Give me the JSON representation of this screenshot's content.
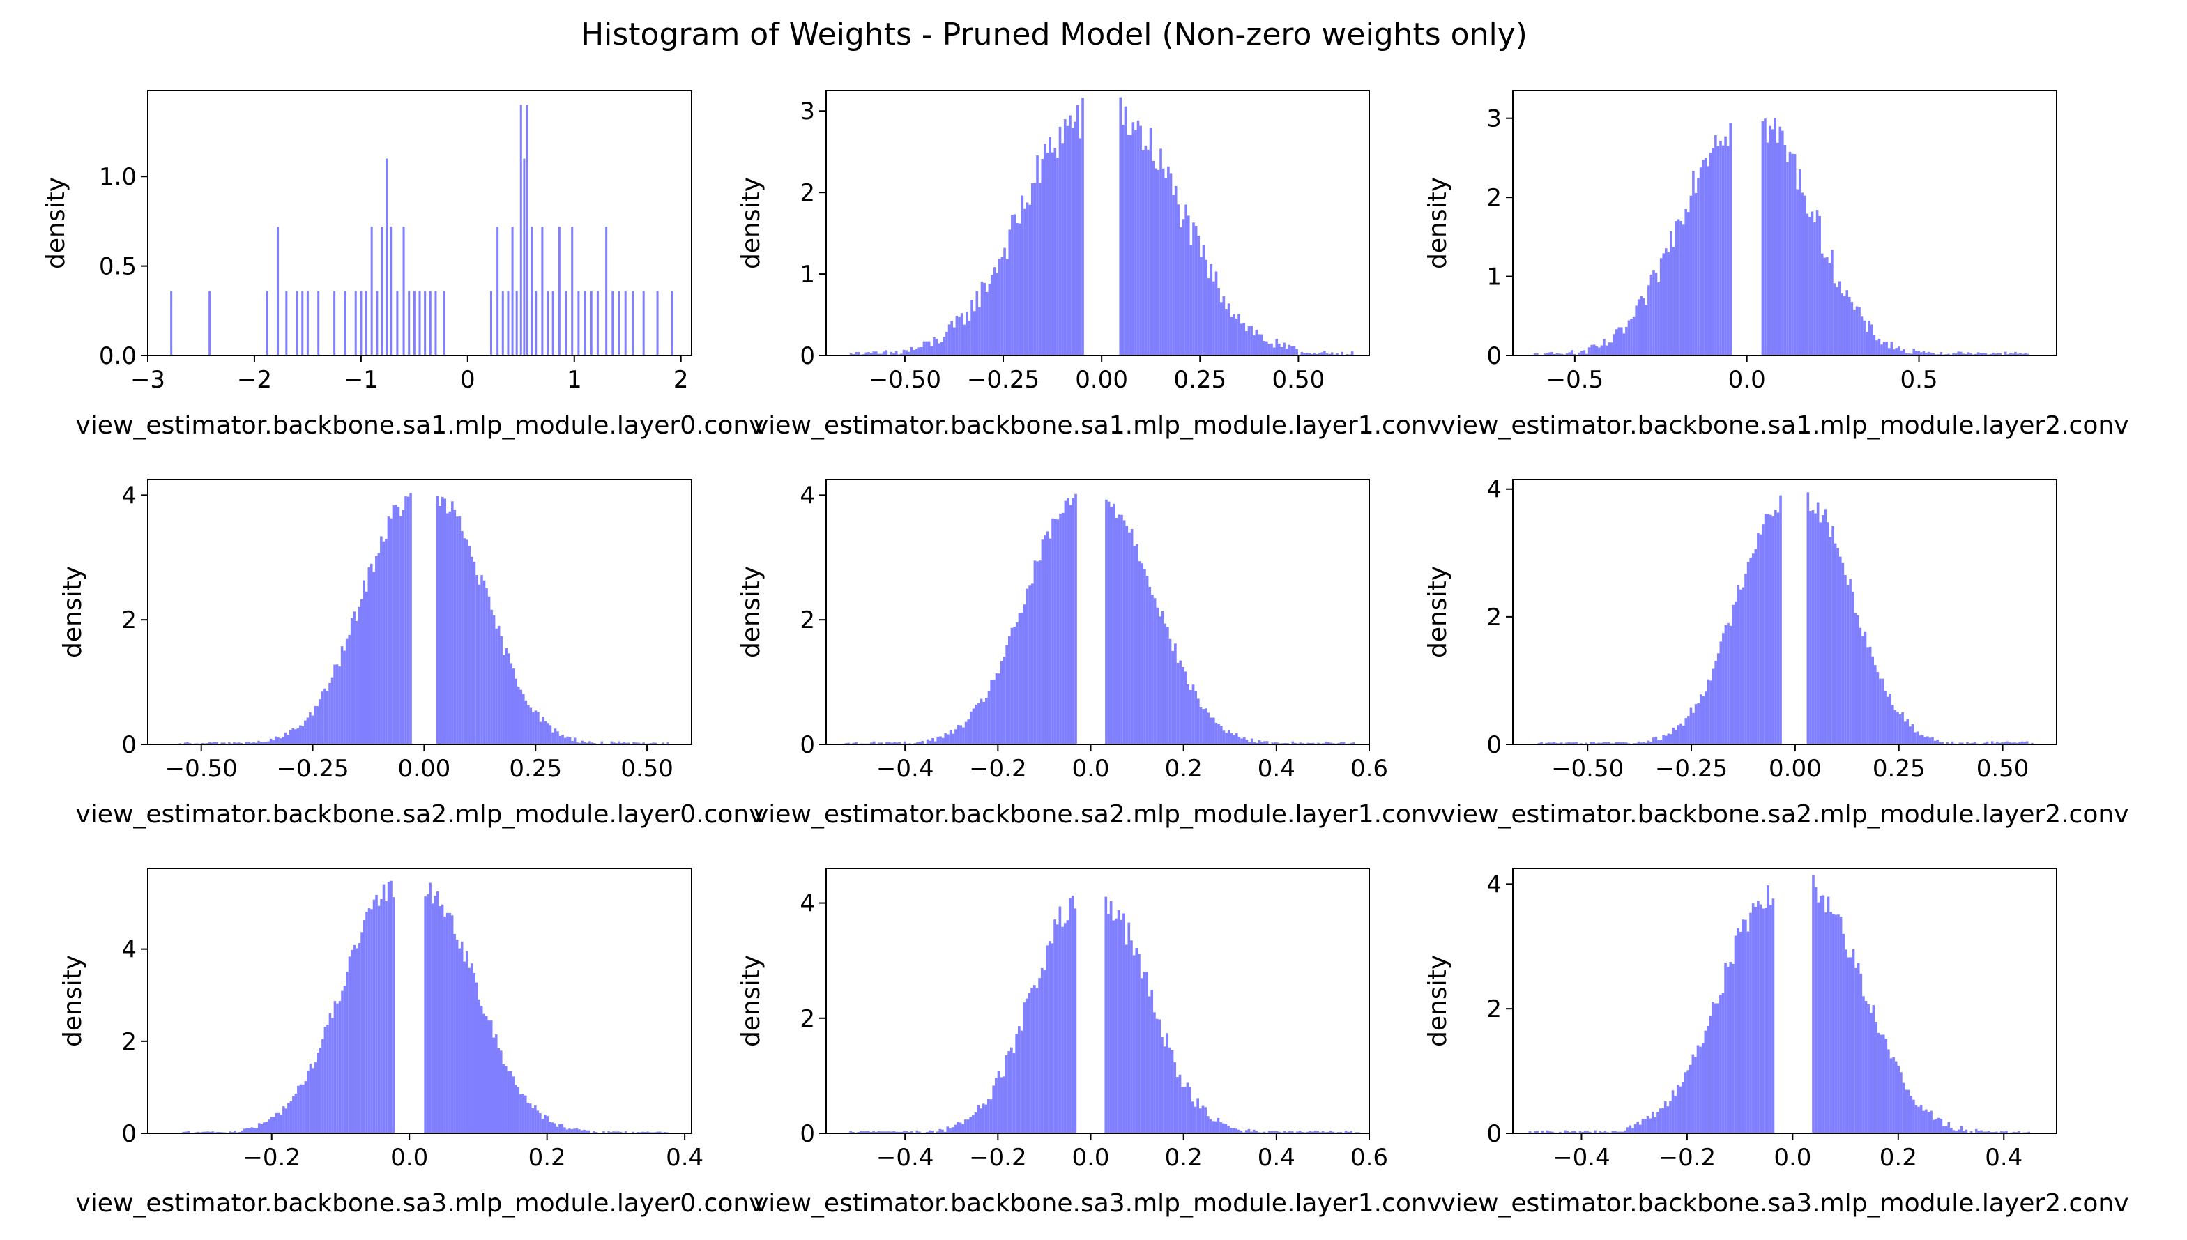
{
  "figure": {
    "title": "Histogram of Weights - Pruned Model (Non-zero weights only)",
    "bar_color": "#7f7fff",
    "frame_color": "#000000"
  },
  "chart_data": [
    {
      "type": "bar",
      "kind": "histogram",
      "xlabel": "view_estimator.backbone.sa1.mlp_module.layer0.conv",
      "ylabel": "density",
      "xlim": [
        -3.0,
        2.1
      ],
      "ylim": [
        0,
        1.48
      ],
      "xticks": [
        -3,
        -2,
        -1,
        0,
        1,
        2
      ],
      "xtick_labels": [
        "−3",
        "−2",
        "−1",
        "0",
        "1",
        "2"
      ],
      "yticks": [
        0,
        0.5,
        1.0
      ],
      "ytick_labels": [
        "0.0",
        "0.5",
        "1.0"
      ],
      "sparse": true,
      "bins": [
        {
          "x": -2.78,
          "y": 0.36
        },
        {
          "x": -2.42,
          "y": 0.36
        },
        {
          "x": -1.88,
          "y": 0.36
        },
        {
          "x": -1.78,
          "y": 0.72
        },
        {
          "x": -1.7,
          "y": 0.36
        },
        {
          "x": -1.6,
          "y": 0.36
        },
        {
          "x": -1.55,
          "y": 0.36
        },
        {
          "x": -1.5,
          "y": 0.36
        },
        {
          "x": -1.4,
          "y": 0.36
        },
        {
          "x": -1.25,
          "y": 0.36
        },
        {
          "x": -1.15,
          "y": 0.36
        },
        {
          "x": -1.05,
          "y": 0.36
        },
        {
          "x": -1.0,
          "y": 0.36
        },
        {
          "x": -0.95,
          "y": 0.36
        },
        {
          "x": -0.9,
          "y": 0.72
        },
        {
          "x": -0.85,
          "y": 0.36
        },
        {
          "x": -0.8,
          "y": 0.72
        },
        {
          "x": -0.76,
          "y": 1.1
        },
        {
          "x": -0.72,
          "y": 0.72
        },
        {
          "x": -0.66,
          "y": 0.36
        },
        {
          "x": -0.6,
          "y": 0.72
        },
        {
          "x": -0.55,
          "y": 0.36
        },
        {
          "x": -0.5,
          "y": 0.36
        },
        {
          "x": -0.45,
          "y": 0.36
        },
        {
          "x": -0.4,
          "y": 0.36
        },
        {
          "x": -0.35,
          "y": 0.36
        },
        {
          "x": -0.3,
          "y": 0.36
        },
        {
          "x": -0.22,
          "y": 0.36
        },
        {
          "x": 0.22,
          "y": 0.36
        },
        {
          "x": 0.28,
          "y": 0.72
        },
        {
          "x": 0.33,
          "y": 0.36
        },
        {
          "x": 0.38,
          "y": 0.36
        },
        {
          "x": 0.42,
          "y": 0.72
        },
        {
          "x": 0.46,
          "y": 0.36
        },
        {
          "x": 0.5,
          "y": 1.4
        },
        {
          "x": 0.53,
          "y": 1.1
        },
        {
          "x": 0.56,
          "y": 1.4
        },
        {
          "x": 0.6,
          "y": 0.72
        },
        {
          "x": 0.64,
          "y": 0.36
        },
        {
          "x": 0.7,
          "y": 0.72
        },
        {
          "x": 0.75,
          "y": 0.36
        },
        {
          "x": 0.8,
          "y": 0.36
        },
        {
          "x": 0.86,
          "y": 0.72
        },
        {
          "x": 0.92,
          "y": 0.36
        },
        {
          "x": 0.98,
          "y": 0.72
        },
        {
          "x": 1.04,
          "y": 0.36
        },
        {
          "x": 1.1,
          "y": 0.36
        },
        {
          "x": 1.16,
          "y": 0.36
        },
        {
          "x": 1.22,
          "y": 0.36
        },
        {
          "x": 1.3,
          "y": 0.72
        },
        {
          "x": 1.36,
          "y": 0.36
        },
        {
          "x": 1.42,
          "y": 0.36
        },
        {
          "x": 1.48,
          "y": 0.36
        },
        {
          "x": 1.55,
          "y": 0.36
        },
        {
          "x": 1.65,
          "y": 0.36
        },
        {
          "x": 1.78,
          "y": 0.36
        },
        {
          "x": 1.92,
          "y": 0.36
        }
      ]
    },
    {
      "type": "bar",
      "kind": "histogram",
      "xlabel": "view_estimator.backbone.sa1.mlp_module.layer1.conv",
      "ylabel": "density",
      "xlim": [
        -0.7,
        0.68
      ],
      "ylim": [
        0,
        3.25
      ],
      "xticks": [
        -0.5,
        -0.25,
        0,
        0.25,
        0.5
      ],
      "xtick_labels": [
        "−0.50",
        "−0.25",
        "0.00",
        "0.25",
        "0.50"
      ],
      "yticks": [
        0,
        1,
        2,
        3
      ],
      "ytick_labels": [
        "0",
        "1",
        "2",
        "3"
      ],
      "gap": [
        -0.045,
        0.045
      ],
      "sigma": 0.16,
      "peak": 2.9,
      "noise": 0.3,
      "data_range": [
        -0.64,
        0.64
      ],
      "nbins": 200
    },
    {
      "type": "bar",
      "kind": "histogram",
      "xlabel": "view_estimator.backbone.sa1.mlp_module.layer2.conv",
      "ylabel": "density",
      "xlim": [
        -0.68,
        0.9
      ],
      "ylim": [
        0,
        3.35
      ],
      "xticks": [
        -0.5,
        0,
        0.5
      ],
      "xtick_labels": [
        "−0.5",
        "0.0",
        "0.5"
      ],
      "yticks": [
        0,
        1,
        2,
        3
      ],
      "ytick_labels": [
        "0",
        "1",
        "2",
        "3"
      ],
      "gap": [
        -0.045,
        0.045
      ],
      "sigma": 0.15,
      "peak": 2.9,
      "noise": 0.28,
      "data_range": [
        -0.62,
        0.82
      ],
      "nbins": 200
    },
    {
      "type": "bar",
      "kind": "histogram",
      "xlabel": "view_estimator.backbone.sa2.mlp_module.layer0.conv",
      "ylabel": "density",
      "xlim": [
        -0.62,
        0.6
      ],
      "ylim": [
        0,
        4.25
      ],
      "xticks": [
        -0.5,
        -0.25,
        0,
        0.25,
        0.5
      ],
      "xtick_labels": [
        "−0.50",
        "−0.25",
        "0.00",
        "0.25",
        "0.50"
      ],
      "yticks": [
        0,
        2,
        4
      ],
      "ytick_labels": [
        "0",
        "2",
        "4"
      ],
      "gap": [
        -0.03,
        0.03
      ],
      "sigma": 0.11,
      "peak": 3.9,
      "noise": 0.2,
      "data_range": [
        -0.55,
        0.55
      ],
      "nbins": 200
    },
    {
      "type": "bar",
      "kind": "histogram",
      "xlabel": "view_estimator.backbone.sa2.mlp_module.layer1.conv",
      "ylabel": "density",
      "xlim": [
        -0.57,
        0.6
      ],
      "ylim": [
        0,
        4.25
      ],
      "xticks": [
        -0.4,
        -0.2,
        0,
        0.2,
        0.4,
        0.6
      ],
      "xtick_labels": [
        "−0.4",
        "−0.2",
        "0.0",
        "0.2",
        "0.4",
        "0.6"
      ],
      "yticks": [
        0,
        2,
        4
      ],
      "ytick_labels": [
        "0",
        "2",
        "4"
      ],
      "gap": [
        -0.03,
        0.03
      ],
      "sigma": 0.11,
      "peak": 3.9,
      "noise": 0.2,
      "data_range": [
        -0.53,
        0.57
      ],
      "nbins": 200
    },
    {
      "type": "bar",
      "kind": "histogram",
      "xlabel": "view_estimator.backbone.sa2.mlp_module.layer2.conv",
      "ylabel": "density",
      "xlim": [
        -0.68,
        0.63
      ],
      "ylim": [
        0,
        4.15
      ],
      "xticks": [
        -0.5,
        -0.25,
        0,
        0.25,
        0.5
      ],
      "xtick_labels": [
        "−0.50",
        "−0.25",
        "0.00",
        "0.25",
        "0.50"
      ],
      "yticks": [
        0,
        2,
        4
      ],
      "ytick_labels": [
        "0",
        "2",
        "4"
      ],
      "gap": [
        -0.03,
        0.03
      ],
      "sigma": 0.11,
      "peak": 3.8,
      "noise": 0.2,
      "data_range": [
        -0.62,
        0.58
      ],
      "nbins": 200
    },
    {
      "type": "bar",
      "kind": "histogram",
      "xlabel": "view_estimator.backbone.sa3.mlp_module.layer0.conv",
      "ylabel": "density",
      "xlim": [
        -0.38,
        0.41
      ],
      "ylim": [
        0,
        5.75
      ],
      "xticks": [
        -0.2,
        0,
        0.2,
        0.4
      ],
      "xtick_labels": [
        "−0.2",
        "0.0",
        "0.2",
        "0.4"
      ],
      "yticks": [
        0,
        2,
        4
      ],
      "ytick_labels": [
        "0",
        "2",
        "4"
      ],
      "gap": [
        -0.022,
        0.022
      ],
      "sigma": 0.075,
      "peak": 5.3,
      "noise": 0.25,
      "data_range": [
        -0.33,
        0.38
      ],
      "nbins": 200
    },
    {
      "type": "bar",
      "kind": "histogram",
      "xlabel": "view_estimator.backbone.sa3.mlp_module.layer1.conv",
      "ylabel": "density",
      "xlim": [
        -0.57,
        0.6
      ],
      "ylim": [
        0,
        4.6
      ],
      "xticks": [
        -0.4,
        -0.2,
        0,
        0.2,
        0.4,
        0.6
      ],
      "xtick_labels": [
        "−0.4",
        "−0.2",
        "0.0",
        "0.2",
        "0.4",
        "0.6"
      ],
      "yticks": [
        0,
        2,
        4
      ],
      "ytick_labels": [
        "0",
        "2",
        "4"
      ],
      "gap": [
        -0.03,
        0.03
      ],
      "sigma": 0.1,
      "peak": 3.9,
      "noise": 0.3,
      "data_range": [
        -0.52,
        0.58
      ],
      "nbins": 200
    },
    {
      "type": "bar",
      "kind": "histogram",
      "xlabel": "view_estimator.backbone.sa3.mlp_module.layer2.conv",
      "ylabel": "density",
      "xlim": [
        -0.53,
        0.5
      ],
      "ylim": [
        0,
        4.25
      ],
      "xticks": [
        -0.4,
        -0.2,
        0,
        0.2,
        0.4
      ],
      "xtick_labels": [
        "−0.4",
        "−0.2",
        "0.0",
        "0.2",
        "0.4"
      ],
      "yticks": [
        0,
        2,
        4
      ],
      "ytick_labels": [
        "0",
        "2",
        "4"
      ],
      "gap": [
        -0.035,
        0.035
      ],
      "sigma": 0.1,
      "peak": 3.9,
      "noise": 0.25,
      "data_range": [
        -0.5,
        0.45
      ],
      "nbins": 200
    }
  ]
}
